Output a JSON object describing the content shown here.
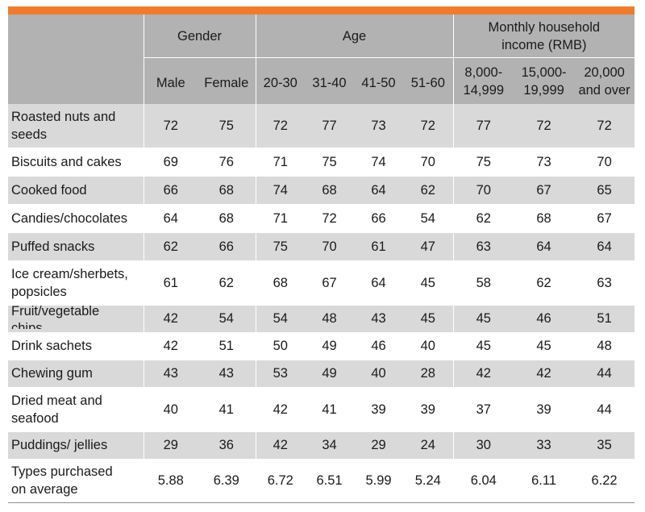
{
  "header": {
    "gender": "Gender",
    "age": "Age",
    "income": "Monthly household income (RMB)",
    "columns": [
      "Male",
      "Female",
      "20-30",
      "31-40",
      "41-50",
      "51-60",
      "8,000-14,999",
      "15,000-19,999",
      "20,000 and over"
    ],
    "columns_display": [
      "Male",
      "Female",
      "20-30",
      "31-40",
      "41-50",
      "51-60",
      [
        "8,000-",
        "14,999"
      ],
      [
        "15,000-",
        "19,999"
      ],
      [
        "20,000",
        "and over"
      ]
    ]
  },
  "rows": [
    {
      "label": [
        "Roasted nuts and",
        "seeds"
      ],
      "values": [
        "72",
        "75",
        "72",
        "77",
        "73",
        "72",
        "77",
        "72",
        "72"
      ],
      "shade": true,
      "h": 54
    },
    {
      "label": [
        "Biscuits and cakes"
      ],
      "values": [
        "69",
        "76",
        "71",
        "75",
        "74",
        "70",
        "75",
        "73",
        "70"
      ],
      "shade": false,
      "h": 35
    },
    {
      "label": [
        "Cooked food"
      ],
      "values": [
        "66",
        "68",
        "74",
        "68",
        "64",
        "62",
        "70",
        "67",
        "65"
      ],
      "shade": true,
      "h": 35
    },
    {
      "label": [
        "Candies/chocolates"
      ],
      "values": [
        "64",
        "68",
        "71",
        "72",
        "66",
        "54",
        "62",
        "68",
        "67"
      ],
      "shade": false,
      "h": 35
    },
    {
      "label": [
        "Puffed snacks"
      ],
      "values": [
        "62",
        "66",
        "75",
        "70",
        "61",
        "47",
        "63",
        "64",
        "64"
      ],
      "shade": true,
      "h": 35
    },
    {
      "label": [
        "Ice cream/sherbets,",
        "popsicles"
      ],
      "values": [
        "61",
        "62",
        "68",
        "67",
        "64",
        "45",
        "58",
        "62",
        "63"
      ],
      "shade": false,
      "h": 55
    },
    {
      "label": [
        "Fruit/vegetable",
        "chips"
      ],
      "values": [
        "42",
        "54",
        "54",
        "48",
        "43",
        "45",
        "45",
        "46",
        "51"
      ],
      "shade": true,
      "h": 34,
      "clip": true
    },
    {
      "label": [
        "Drink sachets"
      ],
      "values": [
        "42",
        "51",
        "50",
        "49",
        "46",
        "40",
        "45",
        "45",
        "48"
      ],
      "shade": false,
      "h": 34
    },
    {
      "label": [
        "Chewing gum"
      ],
      "values": [
        "43",
        "43",
        "53",
        "49",
        "40",
        "28",
        "42",
        "42",
        "44"
      ],
      "shade": true,
      "h": 34
    },
    {
      "label": [
        "Dried meat and",
        "seafood"
      ],
      "values": [
        "40",
        "41",
        "42",
        "41",
        "39",
        "39",
        "37",
        "39",
        "44"
      ],
      "shade": false,
      "h": 55
    },
    {
      "label": [
        "Puddings/ jellies"
      ],
      "values": [
        "29",
        "36",
        "42",
        "34",
        "29",
        "24",
        "30",
        "33",
        "35"
      ],
      "shade": true,
      "h": 34
    },
    {
      "label": [
        "Types purchased",
        "on average"
      ],
      "values": [
        "5.88",
        "6.39",
        "6.72",
        "6.51",
        "5.99",
        "5.24",
        "6.04",
        "6.11",
        "6.22"
      ],
      "shade": false,
      "h": 54
    }
  ],
  "colors": {
    "accent": "#ef7c2e",
    "header_bg": "#b2b2b2",
    "shade_bg": "#d9d9d9"
  }
}
